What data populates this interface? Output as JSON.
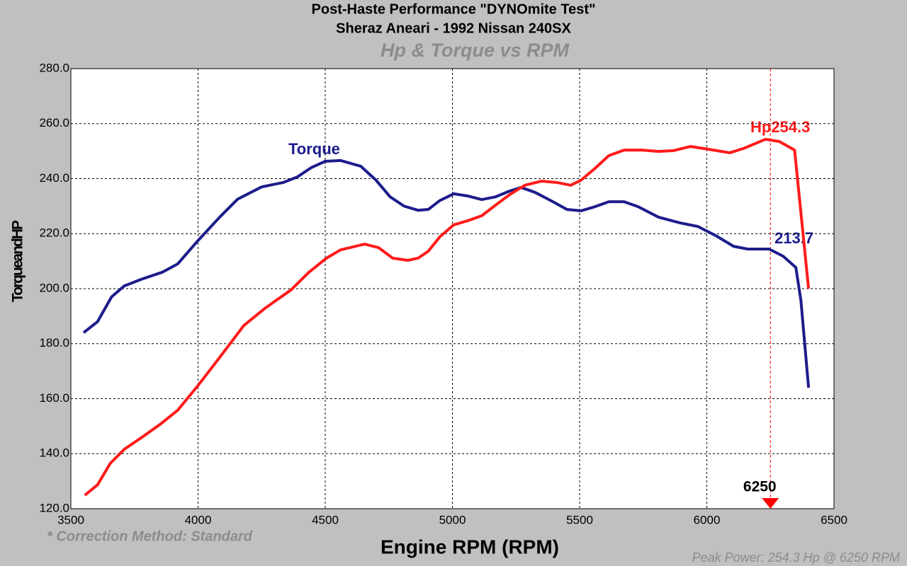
{
  "chart_data": {
    "type": "line",
    "title": "Post-Haste Performance \"DYNOmite Test\"",
    "subtitle": "Sheraz Aneari - 1992 Nissan 240SX",
    "chart_title": "Hp & Torque vs RPM",
    "x_label": "Engine RPM (RPM)",
    "y_label": "TorqueandHP",
    "note": "* Correction Method: Standard",
    "footer": "Peak Power: 254.3 Hp @ 6250 RPM",
    "annotations": {
      "torque": "Torque",
      "hp": "Hp254.3",
      "torque_end": "213.7"
    },
    "marker": {
      "x": 6250,
      "label": "6250",
      "color": "#ff0000"
    },
    "xlim": [
      3500,
      6500
    ],
    "xticks": [
      3500,
      4000,
      4500,
      5000,
      5500,
      6000,
      6500
    ],
    "ylim": [
      120,
      280
    ],
    "yticks": [
      {
        "value": 120,
        "label": "120.0"
      },
      {
        "value": 140,
        "label": "140.0"
      },
      {
        "value": 160,
        "label": "160.0"
      },
      {
        "value": 180,
        "label": "180.0"
      },
      {
        "value": 200,
        "label": "200.0"
      },
      {
        "value": 220,
        "label": "220.0"
      },
      {
        "value": 240,
        "label": "240.0"
      },
      {
        "value": 260,
        "label": "260.0"
      },
      {
        "value": 280,
        "label": "280.0"
      }
    ],
    "grid": true,
    "series": [
      {
        "name": "Torque",
        "color": "#1c1c8c",
        "x": [
          3550,
          3605,
          3660,
          3710,
          3780,
          3860,
          3920,
          4000,
          4085,
          4155,
          4250,
          4335,
          4390,
          4445,
          4500,
          4560,
          4640,
          4700,
          4755,
          4810,
          4865,
          4905,
          4950,
          5005,
          5060,
          5115,
          5170,
          5225,
          5270,
          5325,
          5395,
          5450,
          5505,
          5560,
          5615,
          5675,
          5730,
          5810,
          5895,
          5965,
          6035,
          6105,
          6160,
          6245,
          6300,
          6350,
          6370,
          6400
        ],
        "values": [
          184,
          188,
          197,
          201,
          203.5,
          206,
          209,
          217.5,
          226,
          232.5,
          237,
          238.6,
          240.6,
          244,
          246.3,
          246.6,
          244.5,
          239.4,
          233.4,
          230,
          228.5,
          228.8,
          232,
          234.5,
          233.7,
          232.4,
          233.4,
          235.5,
          236.8,
          235,
          231.6,
          228.8,
          228.3,
          229.8,
          231.6,
          231.6,
          229.8,
          226,
          223.9,
          222.6,
          219.3,
          215.4,
          214.4,
          214.4,
          211.8,
          207.7,
          195.6,
          164
        ]
      },
      {
        "name": "Hp",
        "color": "#ff1a1a",
        "x": [
          3555,
          3605,
          3655,
          3710,
          3780,
          3850,
          3920,
          4000,
          4085,
          4180,
          4265,
          4365,
          4435,
          4505,
          4560,
          4655,
          4710,
          4765,
          4825,
          4865,
          4905,
          4950,
          5005,
          5060,
          5115,
          5170,
          5225,
          5285,
          5350,
          5410,
          5465,
          5505,
          5560,
          5615,
          5675,
          5745,
          5810,
          5870,
          5935,
          6005,
          6090,
          6145,
          6230,
          6285,
          6345,
          6400
        ],
        "values": [
          124.9,
          128.7,
          136.5,
          141.6,
          146,
          150.6,
          155.8,
          164.8,
          175,
          186.6,
          193,
          199.5,
          205.9,
          211.1,
          214.1,
          216.2,
          214.9,
          211.1,
          210.3,
          211.1,
          213.6,
          218.8,
          223.2,
          224.7,
          226.5,
          230.4,
          234.2,
          237.6,
          239.1,
          238.6,
          237.6,
          239.4,
          243.7,
          248.4,
          250.4,
          250.4,
          249.9,
          250.2,
          251.7,
          250.7,
          249.4,
          251,
          254.3,
          253.5,
          250.4,
          200
        ]
      }
    ]
  }
}
